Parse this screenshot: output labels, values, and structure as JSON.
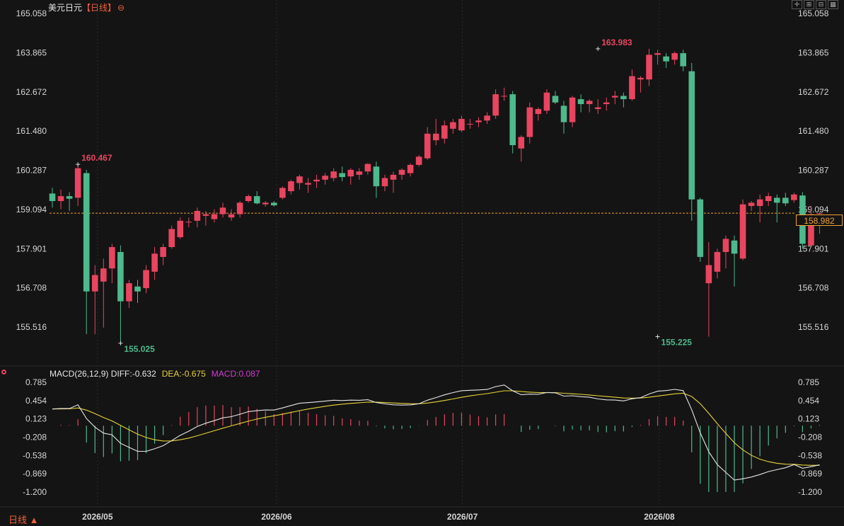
{
  "header": {
    "instrument": "美元日元",
    "period": "【日线】",
    "settings_icon": "circle-minus-icon",
    "tools": [
      "crosshair-icon",
      "zoom-in-icon",
      "zoom-out-icon",
      "grid-icon"
    ]
  },
  "period_selector": {
    "label": "日线 ▲"
  },
  "last_price": {
    "value": "158.982",
    "line_value": 158.982
  },
  "colors": {
    "up": "#e94560",
    "down": "#4eb98c",
    "diff": "#e6e6e6",
    "dea": "#e8d23a",
    "macd": "#d43ad4",
    "price_line": "#f0a030"
  },
  "chart_data": [
    {
      "type": "candlestick",
      "y_ticks": [
        "165.058",
        "163.865",
        "162.672",
        "161.480",
        "160.287",
        "159.094",
        "157.901",
        "156.708",
        "155.516"
      ],
      "ylim": [
        155.516,
        165.058
      ],
      "x_ticks": [
        "2026/05",
        "2026/06",
        "2026/07",
        "2026/08"
      ],
      "x_tick_index": [
        5.3,
        26.3,
        48.1,
        71.2
      ],
      "annotations": [
        {
          "text": "160.467",
          "index": 3,
          "price": 160.467,
          "kind": "high"
        },
        {
          "text": "155.025",
          "index": 8,
          "price": 155.025,
          "kind": "low"
        },
        {
          "text": "163.983",
          "index": 64,
          "price": 163.983,
          "kind": "high"
        },
        {
          "text": "155.225",
          "index": 71,
          "price": 155.225,
          "kind": "low"
        }
      ],
      "ohlc": [
        [
          159.58,
          159.75,
          159.15,
          159.35
        ],
        [
          159.35,
          159.7,
          159.1,
          159.5
        ],
        [
          159.5,
          159.62,
          159.05,
          159.42
        ],
        [
          159.45,
          160.467,
          159.2,
          160.35
        ],
        [
          160.2,
          160.3,
          155.3,
          156.6
        ],
        [
          156.6,
          157.4,
          155.3,
          157.1
        ],
        [
          156.9,
          157.6,
          155.5,
          157.3
        ],
        [
          157.3,
          158.05,
          156.85,
          157.95
        ],
        [
          157.8,
          158.0,
          155.025,
          156.3
        ],
        [
          156.3,
          156.95,
          156.1,
          156.85
        ],
        [
          156.75,
          156.95,
          156.25,
          156.6
        ],
        [
          156.7,
          157.4,
          156.55,
          157.25
        ],
        [
          157.2,
          157.95,
          156.95,
          157.75
        ],
        [
          157.65,
          158.05,
          157.4,
          157.95
        ],
        [
          157.95,
          158.6,
          157.9,
          158.5
        ],
        [
          158.25,
          158.85,
          158.2,
          158.75
        ],
        [
          158.7,
          158.85,
          158.55,
          158.72
        ],
        [
          158.75,
          159.15,
          158.55,
          159.05
        ],
        [
          158.9,
          159.05,
          158.6,
          158.95
        ],
        [
          158.8,
          159.1,
          158.7,
          158.95
        ],
        [
          158.95,
          159.3,
          158.85,
          159.15
        ],
        [
          158.85,
          159.1,
          158.75,
          158.95
        ],
        [
          158.95,
          159.35,
          158.85,
          159.3
        ],
        [
          159.35,
          159.55,
          159.3,
          159.5
        ],
        [
          159.5,
          159.65,
          159.25,
          159.28
        ],
        [
          159.25,
          159.35,
          159.18,
          159.3
        ],
        [
          159.3,
          159.35,
          159.18,
          159.22
        ],
        [
          159.45,
          159.8,
          159.4,
          159.75
        ],
        [
          159.65,
          160.0,
          159.55,
          159.95
        ],
        [
          159.9,
          160.15,
          159.7,
          160.1
        ],
        [
          159.85,
          160.05,
          159.6,
          159.9
        ],
        [
          159.95,
          160.15,
          159.75,
          160.0
        ],
        [
          160.0,
          160.2,
          159.85,
          160.12
        ],
        [
          160.05,
          160.35,
          159.95,
          160.25
        ],
        [
          160.2,
          160.4,
          159.95,
          160.08
        ],
        [
          160.1,
          160.35,
          159.85,
          160.3
        ],
        [
          160.15,
          160.35,
          160.0,
          160.25
        ],
        [
          160.25,
          160.5,
          160.15,
          160.48
        ],
        [
          160.4,
          160.55,
          159.45,
          159.8
        ],
        [
          159.8,
          160.15,
          159.65,
          160.05
        ],
        [
          160.0,
          160.25,
          159.6,
          160.15
        ],
        [
          160.15,
          160.35,
          160.0,
          160.3
        ],
        [
          160.2,
          160.5,
          160.1,
          160.45
        ],
        [
          160.45,
          160.75,
          160.4,
          160.7
        ],
        [
          160.65,
          161.6,
          160.6,
          161.4
        ],
        [
          161.2,
          161.85,
          161.05,
          161.4
        ],
        [
          161.25,
          161.8,
          161.1,
          161.65
        ],
        [
          161.55,
          161.85,
          161.4,
          161.75
        ],
        [
          161.5,
          161.95,
          161.45,
          161.85
        ],
        [
          161.7,
          161.85,
          161.55,
          161.7
        ],
        [
          161.75,
          161.9,
          161.6,
          161.8
        ],
        [
          161.8,
          162.05,
          161.7,
          161.95
        ],
        [
          161.95,
          162.75,
          161.85,
          162.6
        ],
        [
          162.55,
          162.8,
          162.4,
          162.55
        ],
        [
          162.6,
          162.7,
          160.8,
          161.05
        ],
        [
          160.95,
          161.35,
          160.55,
          161.3
        ],
        [
          161.3,
          162.35,
          161.1,
          162.2
        ],
        [
          162.0,
          162.2,
          161.8,
          162.15
        ],
        [
          162.1,
          162.75,
          162.0,
          162.65
        ],
        [
          162.55,
          162.7,
          162.3,
          162.35
        ],
        [
          162.25,
          162.4,
          161.4,
          161.75
        ],
        [
          161.75,
          162.55,
          161.6,
          162.5
        ],
        [
          162.45,
          162.6,
          162.05,
          162.3
        ],
        [
          162.3,
          162.45,
          162.05,
          162.4
        ],
        [
          162.15,
          162.45,
          162.0,
          162.2
        ],
        [
          162.3,
          162.5,
          162.1,
          162.35
        ],
        [
          162.5,
          162.7,
          162.3,
          162.55
        ],
        [
          162.55,
          162.65,
          162.2,
          162.45
        ],
        [
          162.45,
          163.35,
          162.4,
          163.15
        ],
        [
          163.05,
          163.15,
          162.65,
          163.1
        ],
        [
          163.05,
          163.983,
          162.85,
          163.8
        ],
        [
          163.8,
          163.95,
          163.5,
          163.85
        ],
        [
          163.75,
          163.85,
          163.4,
          163.6
        ],
        [
          163.65,
          163.9,
          163.5,
          163.85
        ],
        [
          163.85,
          163.95,
          163.3,
          163.45
        ],
        [
          163.3,
          163.55,
          158.75,
          159.4
        ],
        [
          159.4,
          159.45,
          157.5,
          157.65
        ],
        [
          156.85,
          158.1,
          155.225,
          157.4
        ],
        [
          157.2,
          157.9,
          157.0,
          157.8
        ],
        [
          157.8,
          158.3,
          157.3,
          158.2
        ],
        [
          158.15,
          158.3,
          156.75,
          157.75
        ],
        [
          157.6,
          159.4,
          157.55,
          159.25
        ],
        [
          159.2,
          159.35,
          159.05,
          159.3
        ],
        [
          159.2,
          159.55,
          158.7,
          159.4
        ],
        [
          159.35,
          159.6,
          159.2,
          159.5
        ],
        [
          159.45,
          159.55,
          158.7,
          159.3
        ],
        [
          159.45,
          159.6,
          159.2,
          159.28
        ],
        [
          159.38,
          159.6,
          159.3,
          159.55
        ],
        [
          159.52,
          159.62,
          157.9,
          158.05
        ],
        [
          158.0,
          159.2,
          157.95,
          158.95
        ],
        [
          158.98,
          159.02,
          158.35,
          158.982
        ]
      ]
    },
    {
      "type": "bar+line",
      "title": "MACD(26,12,9)",
      "legend": {
        "diff": "DIFF:-0.632",
        "dea": "DEA:-0.675",
        "macd": "MACD:0.087"
      },
      "y_ticks": [
        "0.785",
        "0.454",
        "0.123",
        "-0.208",
        "-0.538",
        "-0.869",
        "-1.200"
      ],
      "ylim": [
        -1.2,
        0.785
      ]
    }
  ]
}
